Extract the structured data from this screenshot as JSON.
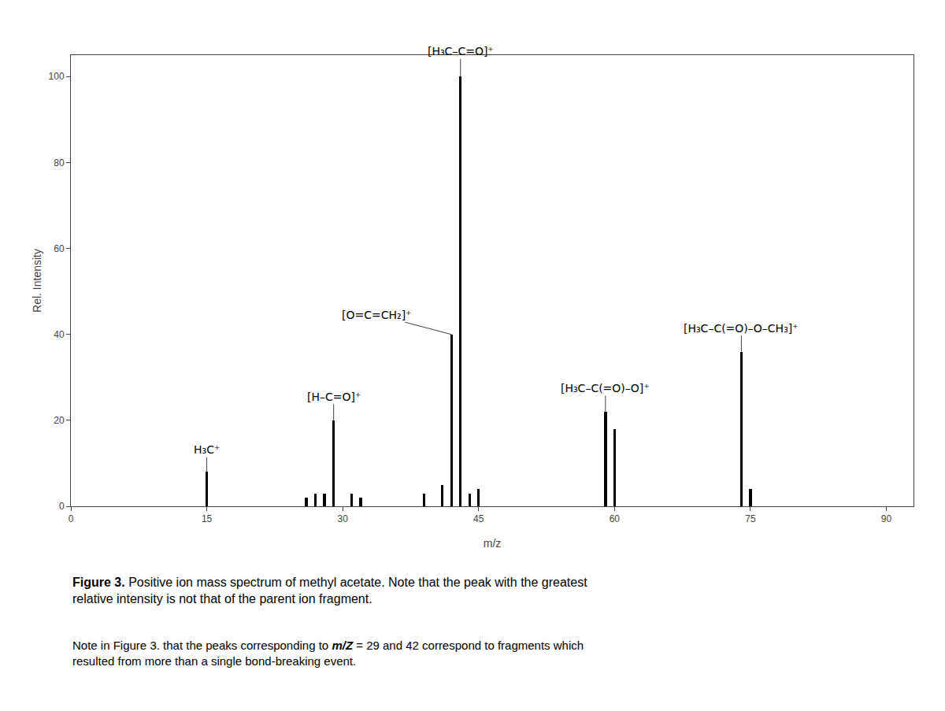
{
  "chart_data": {
    "type": "bar",
    "xlabel": "m/z",
    "ylabel": "Rel. Intensity",
    "x": [
      15,
      26,
      27,
      28,
      29,
      31,
      32,
      39,
      41,
      42,
      43,
      44,
      45,
      59,
      60,
      74,
      75
    ],
    "values": [
      8,
      2,
      3,
      3,
      20,
      3,
      2,
      3,
      5,
      40,
      100,
      3,
      4,
      22,
      18,
      36,
      4
    ],
    "color": "#000000",
    "xlim": [
      0,
      93
    ],
    "xticks": [
      0,
      15,
      30,
      45,
      60,
      75,
      90
    ],
    "ylim": [
      0,
      105
    ],
    "yticks": [
      0,
      20,
      40,
      60,
      80,
      100
    ],
    "grid": false,
    "annotations": [
      {
        "x": 43,
        "y": 100,
        "text": "[H₃C–C=O]⁺"
      },
      {
        "x": 42,
        "y": 40,
        "text": "[O=C=CH₂]⁺"
      },
      {
        "x": 29,
        "y": 20,
        "text": "[H–C=O]⁺"
      },
      {
        "x": 15,
        "y": 8,
        "text": "H₃C⁺"
      },
      {
        "x": 59,
        "y": 22,
        "text": "[H₃C–C(=O)–O]⁺"
      },
      {
        "x": 74,
        "y": 36,
        "text": "[H₃C–C(=O)–O–CH₃]⁺"
      }
    ],
    "caption": [
      {
        "text": "Figure 3.",
        "bold": true
      },
      {
        "text": " Positive ion mass spectrum of methyl acetate. Note that the peak with the greatest\nrelative intensity is not that of the parent ion fragment."
      }
    ],
    "note": [
      {
        "text": "Note in Figure 3. that the peaks corresponding to "
      },
      {
        "text": "m/Z",
        "bold": true,
        "italic": true
      },
      {
        "text": " = 29 and 42 correspond to fragments which\nresulted from more than a single bond-breaking event."
      }
    ]
  }
}
